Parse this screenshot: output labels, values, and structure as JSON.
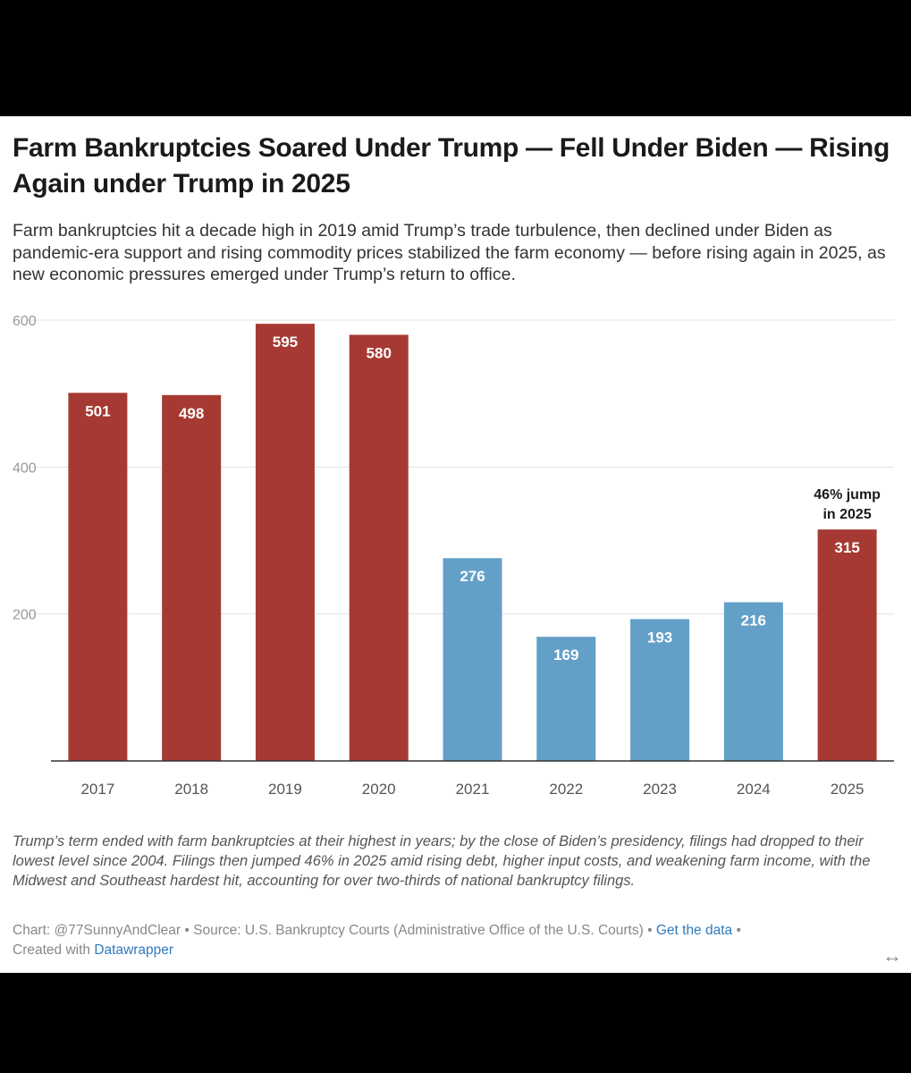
{
  "title": "Farm Bankruptcies Soared Under Trump — Fell Under Biden — Rising Again under Trump in 2025",
  "subtitle": "Farm bankruptcies hit a decade high in 2019 amid Trump’s trade turbulence, then declined under Biden as pandemic-era support and rising commodity prices stabilized the farm economy — before rising again in 2025, as new economic pressures emerged under Trump’s return to office.",
  "notes": "Trump’s term ended with farm bankruptcies at their highest in years; by the close of Biden’s presidency, filings had dropped to their lowest level since 2004. Filings then jumped 46% in 2025 amid rising debt, higher input costs, and weakening farm income, with the Midwest and Southeast hardest hit, accounting for over two-thirds of national bankruptcy filings.",
  "footer": {
    "chart_credit": "Chart: @77SunnyAndClear",
    "source": "Source: U.S. Bankruptcy Courts (Administrative Office of the U.S. Courts)",
    "get_data": "Get the data",
    "created_with_prefix": "Created with",
    "datawrapper": "Datawrapper",
    "separator": "•"
  },
  "expand_icon": "↔",
  "colors": {
    "trump": "#a63a32",
    "biden": "#63a0c8",
    "grid": "#e2e2e2",
    "axis": "#333333",
    "tick_text": "#555555",
    "gridlabel_text": "#999999",
    "link": "#2f7bbd"
  },
  "chart_data": {
    "type": "bar",
    "categories": [
      "2017",
      "2018",
      "2019",
      "2020",
      "2021",
      "2022",
      "2023",
      "2024",
      "2025"
    ],
    "values": [
      501,
      498,
      595,
      580,
      276,
      169,
      193,
      216,
      315
    ],
    "bar_colors": [
      "trump",
      "trump",
      "trump",
      "trump",
      "biden",
      "biden",
      "biden",
      "biden",
      "trump"
    ],
    "ylim": [
      0,
      600
    ],
    "yticks": [
      200,
      400,
      600
    ],
    "grid": true,
    "xlabel": "",
    "ylabel": "",
    "annotations": [
      {
        "category": "2025",
        "lines": [
          "46% jump",
          "in 2025"
        ]
      }
    ]
  }
}
